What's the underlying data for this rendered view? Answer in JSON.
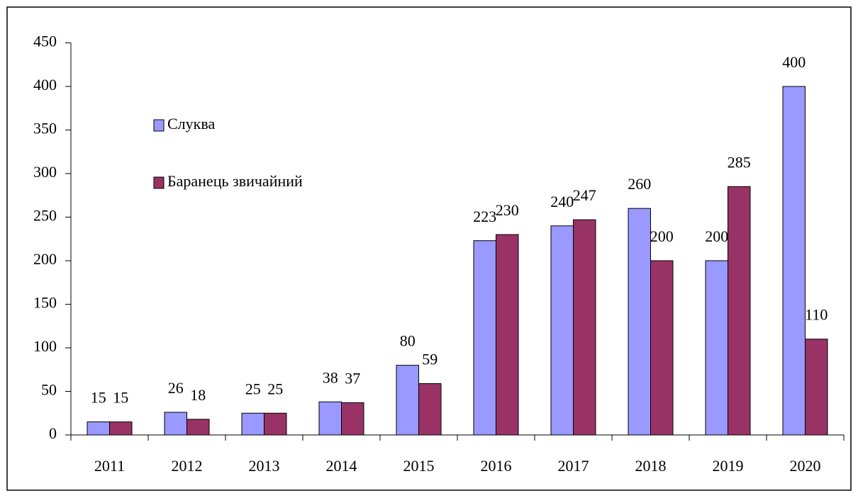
{
  "chart_data": {
    "type": "bar",
    "categories": [
      "2011",
      "2012",
      "2013",
      "2014",
      "2015",
      "2016",
      "2017",
      "2018",
      "2019",
      "2020"
    ],
    "series": [
      {
        "name": "Слуква",
        "color": "#9999ff",
        "values": [
          15,
          26,
          25,
          38,
          80,
          223,
          240,
          260,
          200,
          400
        ]
      },
      {
        "name": "Баранець звичайний",
        "color": "#993366",
        "values": [
          15,
          18,
          25,
          37,
          59,
          230,
          247,
          200,
          285,
          110
        ]
      }
    ],
    "ylim": [
      0,
      450
    ],
    "yticks": [
      0,
      50,
      100,
      150,
      200,
      250,
      300,
      350,
      400,
      450
    ],
    "data_labels": true,
    "legend": "upper left"
  }
}
